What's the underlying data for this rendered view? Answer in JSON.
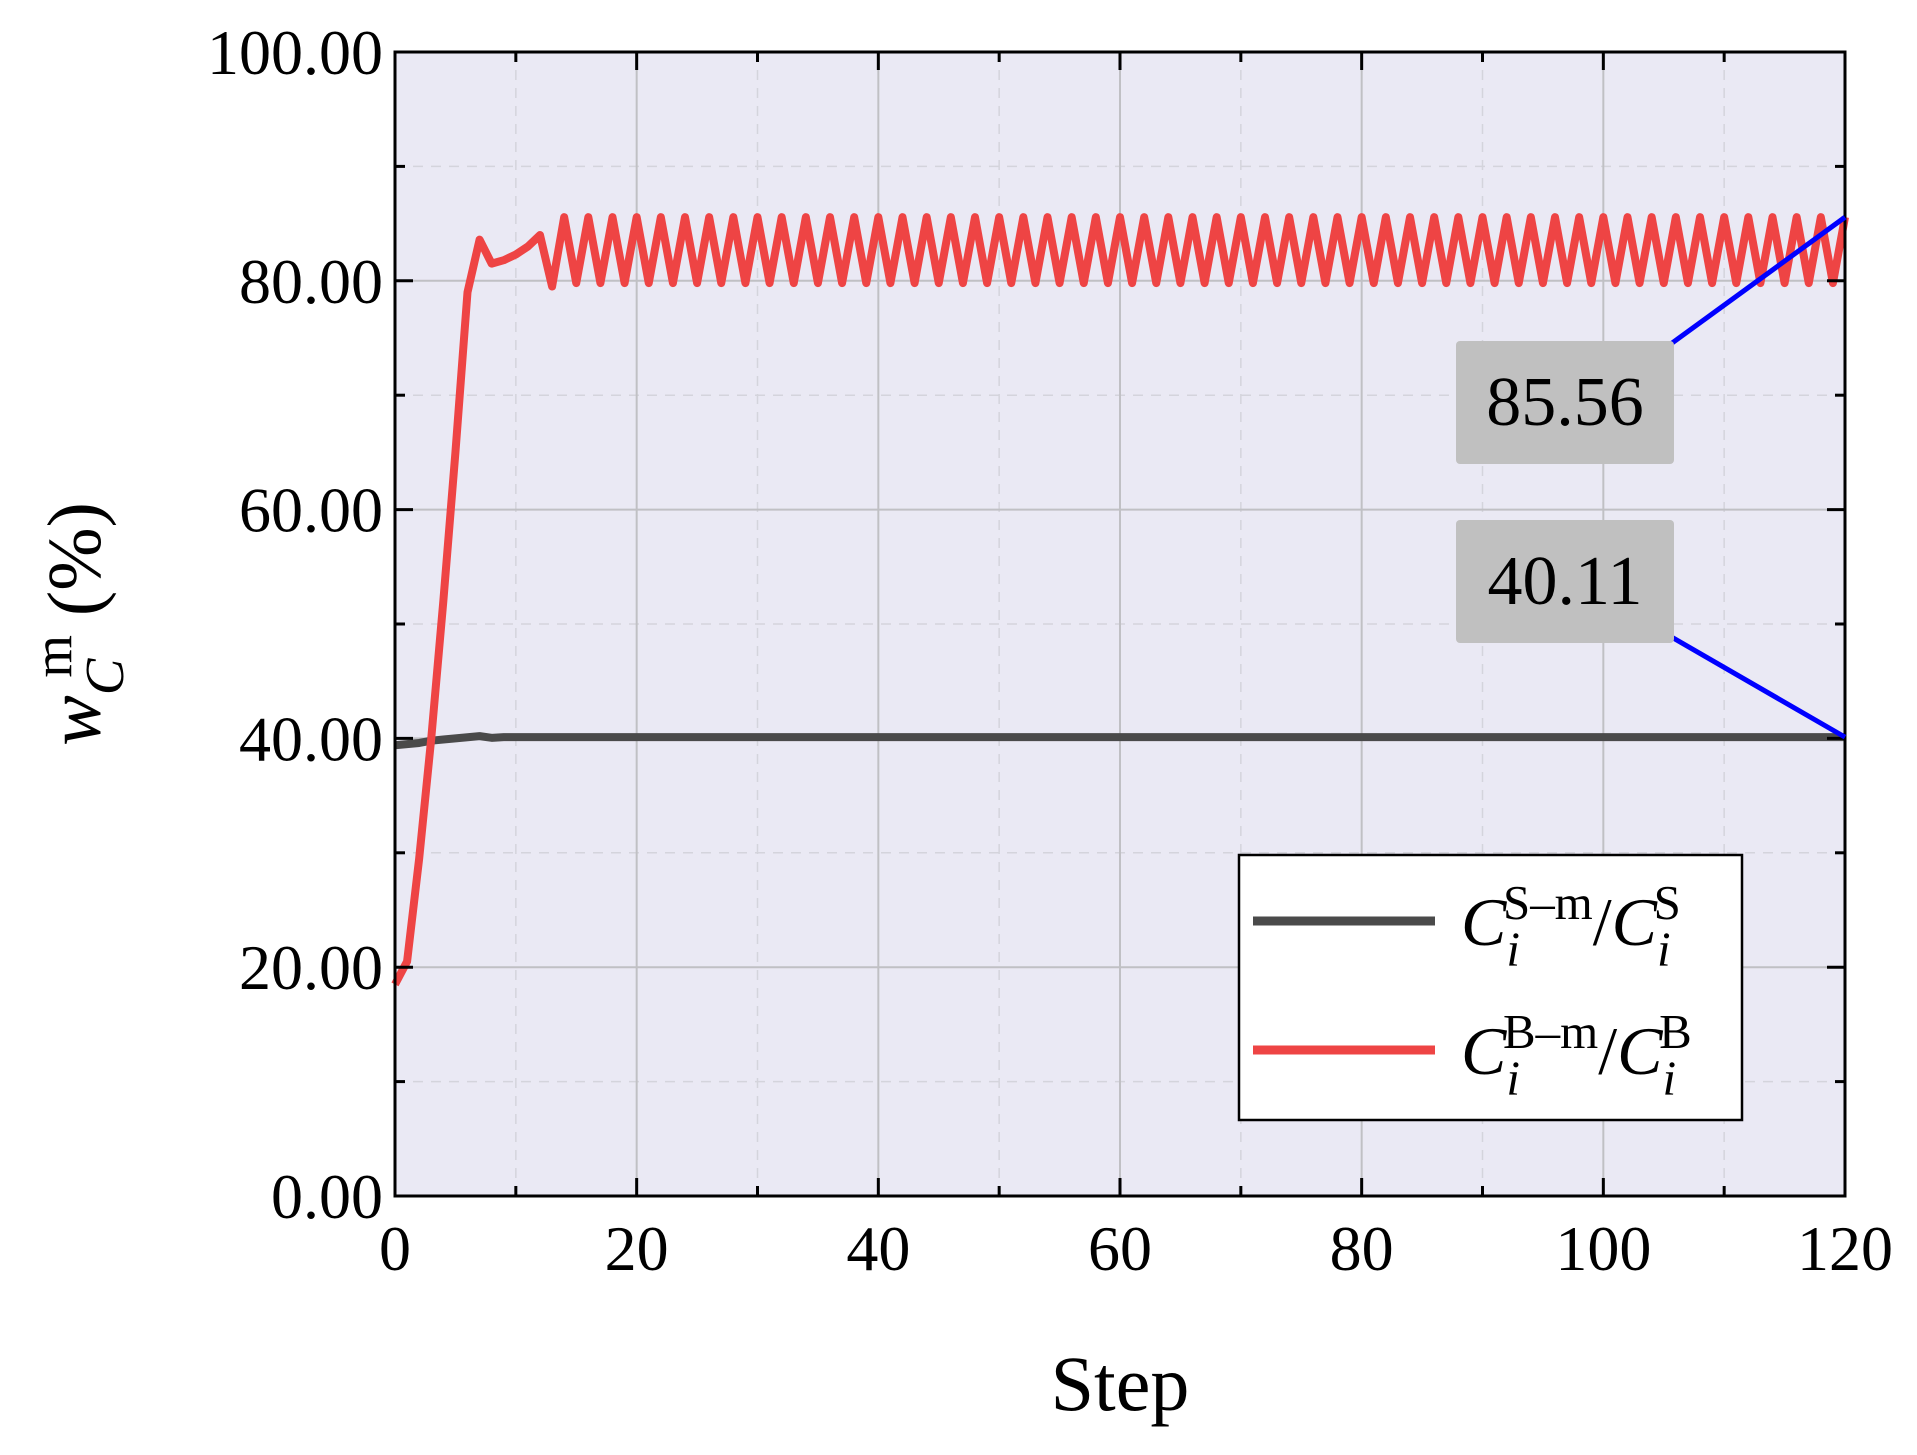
{
  "chart_data": {
    "type": "line",
    "xlabel": "Step",
    "ylabel": "w_{C}^{m} (%)",
    "x": [
      0,
      1,
      2,
      3,
      4,
      5,
      6,
      7,
      8,
      9,
      10,
      11,
      12,
      13,
      14,
      15,
      16,
      17,
      18,
      19,
      20,
      21,
      22,
      23,
      24,
      25,
      26,
      27,
      28,
      29,
      30,
      31,
      32,
      33,
      34,
      35,
      36,
      37,
      38,
      39,
      40,
      41,
      42,
      43,
      44,
      45,
      46,
      47,
      48,
      49,
      50,
      51,
      52,
      53,
      54,
      55,
      56,
      57,
      58,
      59,
      60,
      61,
      62,
      63,
      64,
      65,
      66,
      67,
      68,
      69,
      70,
      71,
      72,
      73,
      74,
      75,
      76,
      77,
      78,
      79,
      80,
      81,
      82,
      83,
      84,
      85,
      86,
      87,
      88,
      89,
      90,
      91,
      92,
      93,
      94,
      95,
      96,
      97,
      98,
      99,
      100,
      101,
      102,
      103,
      104,
      105,
      106,
      107,
      108,
      109,
      110,
      111,
      112,
      113,
      114,
      115,
      116,
      117,
      118,
      119,
      120
    ],
    "series": [
      {
        "name": "C_i^{S_m}/C_i^{S}",
        "color": "#4a4a4a",
        "values": [
          39.4,
          39.5,
          39.6,
          39.8,
          39.9,
          40,
          40.1,
          40.2,
          40.05,
          40.11,
          40.11,
          40.11,
          40.11,
          40.11,
          40.11,
          40.11,
          40.11,
          40.11,
          40.11,
          40.11,
          40.11,
          40.11,
          40.11,
          40.11,
          40.11,
          40.11,
          40.11,
          40.11,
          40.11,
          40.11,
          40.11,
          40.11,
          40.11,
          40.11,
          40.11,
          40.11,
          40.11,
          40.11,
          40.11,
          40.11,
          40.11,
          40.11,
          40.11,
          40.11,
          40.11,
          40.11,
          40.11,
          40.11,
          40.11,
          40.11,
          40.11,
          40.11,
          40.11,
          40.11,
          40.11,
          40.11,
          40.11,
          40.11,
          40.11,
          40.11,
          40.11,
          40.11,
          40.11,
          40.11,
          40.11,
          40.11,
          40.11,
          40.11,
          40.11,
          40.11,
          40.11,
          40.11,
          40.11,
          40.11,
          40.11,
          40.11,
          40.11,
          40.11,
          40.11,
          40.11,
          40.11,
          40.11,
          40.11,
          40.11,
          40.11,
          40.11,
          40.11,
          40.11,
          40.11,
          40.11,
          40.11,
          40.11,
          40.11,
          40.11,
          40.11,
          40.11,
          40.11,
          40.11,
          40.11,
          40.11,
          40.11,
          40.11,
          40.11,
          40.11,
          40.11,
          40.11,
          40.11,
          40.11,
          40.11,
          40.11,
          40.11,
          40.11,
          40.11,
          40.11,
          40.11,
          40.11,
          40.11,
          40.11,
          40.11,
          40.11,
          40.11
        ]
      },
      {
        "name": "C_i^{B_m}/C_i^{B}",
        "color": "#ee4444",
        "values": [
          18.5,
          20.5,
          29.5,
          40,
          52,
          65,
          79,
          83.6,
          81.5,
          81.8,
          82.3,
          83,
          84,
          79.5,
          85.56,
          79.8,
          85.56,
          79.8,
          85.56,
          79.8,
          85.56,
          79.8,
          85.56,
          79.8,
          85.56,
          79.8,
          85.56,
          79.8,
          85.56,
          79.8,
          85.56,
          79.8,
          85.56,
          79.8,
          85.56,
          79.8,
          85.56,
          79.8,
          85.56,
          79.8,
          85.56,
          79.8,
          85.56,
          79.8,
          85.56,
          79.8,
          85.56,
          79.8,
          85.56,
          79.8,
          85.56,
          79.8,
          85.56,
          79.8,
          85.56,
          79.8,
          85.56,
          79.8,
          85.56,
          79.8,
          85.56,
          79.8,
          85.56,
          79.8,
          85.56,
          79.8,
          85.56,
          79.8,
          85.56,
          79.8,
          85.56,
          79.8,
          85.56,
          79.8,
          85.56,
          79.8,
          85.56,
          79.8,
          85.56,
          79.8,
          85.56,
          79.8,
          85.56,
          79.8,
          85.56,
          79.8,
          85.56,
          79.8,
          85.56,
          79.8,
          85.56,
          79.8,
          85.56,
          79.8,
          85.56,
          79.8,
          85.56,
          79.8,
          85.56,
          79.8,
          85.56,
          79.8,
          85.56,
          79.8,
          85.56,
          79.8,
          85.56,
          79.8,
          85.56,
          79.8,
          85.56,
          79.8,
          85.56,
          79.8,
          85.56,
          79.8,
          85.56,
          79.8,
          85.56,
          79.8,
          85.56
        ]
      }
    ],
    "xlim": [
      0,
      120
    ],
    "xticks": [
      0,
      20,
      40,
      60,
      80,
      100,
      120
    ],
    "xminor": [
      10,
      30,
      50,
      70,
      90,
      110
    ],
    "ylim": [
      0,
      100
    ],
    "yticks": [
      {
        "value": 0,
        "label": "0.00"
      },
      {
        "value": 20,
        "label": "20.00"
      },
      {
        "value": 40,
        "label": "40.00"
      },
      {
        "value": 60,
        "label": "60.00"
      },
      {
        "value": 80,
        "label": "80.00"
      },
      {
        "value": 100,
        "label": "100.00"
      }
    ],
    "yminor": [
      10,
      30,
      50,
      70,
      90
    ],
    "grid": true,
    "legend": "lower right",
    "annotations": [
      {
        "text": "85.56",
        "x": 120,
        "y": 85.56,
        "color": "#ff0000"
      },
      {
        "text": "40.11",
        "x": 120,
        "y": 40.11,
        "color": "#000000"
      }
    ]
  }
}
